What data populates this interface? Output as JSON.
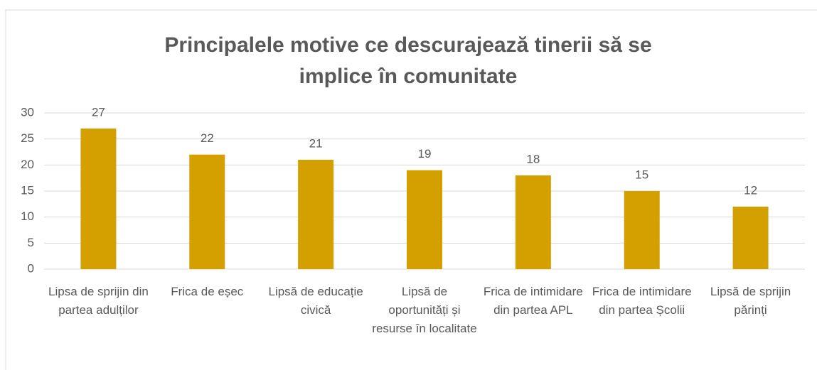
{
  "chart_data": {
    "type": "bar",
    "title": "Principalele motive ce descurajează tinerii să se implice în comunitate",
    "categories": [
      "Lipsa de sprijin din partea adulților",
      "Frica de eșec",
      "Lipsă de educație civică",
      "Lipsă de oportunități și resurse în localitate",
      "Frica de intimidare din partea APL",
      "Frica de intimidare din partea Școlii",
      "Lipsă de sprijin părinți"
    ],
    "values": [
      27,
      22,
      21,
      19,
      18,
      15,
      12
    ],
    "color": "#d4a000",
    "ylim": [
      0,
      30
    ],
    "yticks": [
      0,
      5,
      10,
      15,
      20,
      25,
      30
    ],
    "grid": true
  }
}
